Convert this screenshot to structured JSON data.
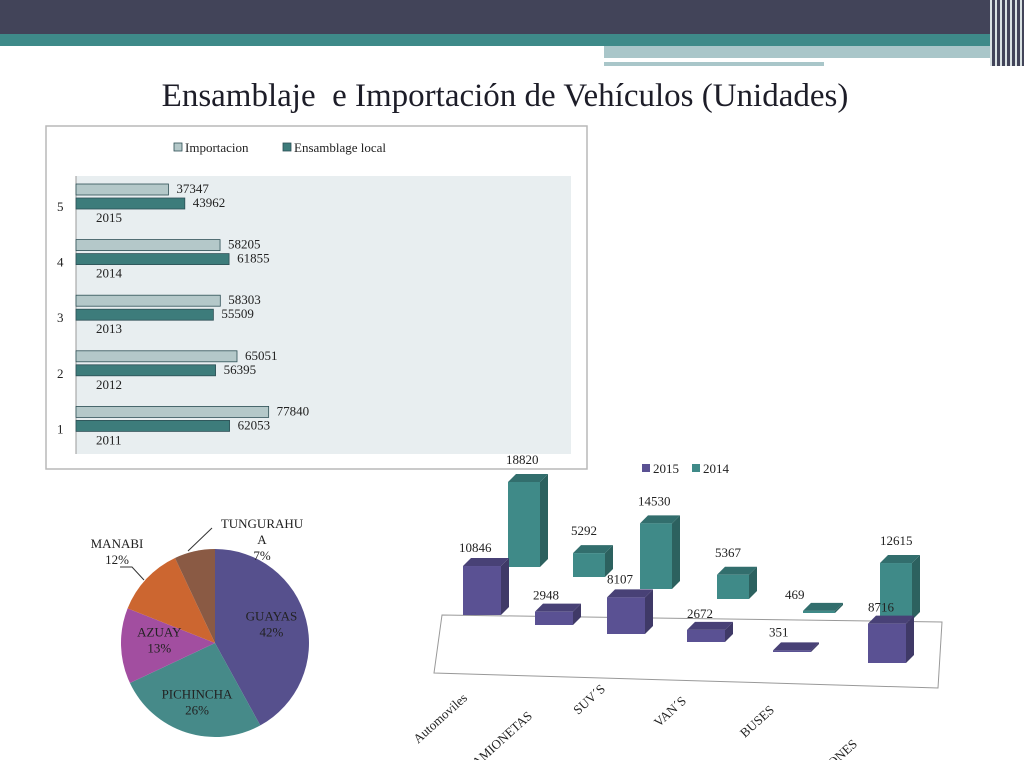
{
  "slide": {
    "title": "Ensamblaje  e Importación de Vehículos (Unidades)"
  },
  "colors": {
    "header_dark": "#424459",
    "header_teal": "#3e8a89",
    "header_light": "#a9c6c9",
    "importacion": "#b4c8c9",
    "ensamblaje": "#3d7c7b",
    "bar_edge": "#2d4f55",
    "plot_bg": "#e8eef0",
    "pie_guayas": "#56508d",
    "pie_pichincha": "#468a89",
    "pie_azuay": "#a24ea0",
    "pie_manabi": "#cc6630",
    "pie_tungurahua": "#8a5a44",
    "bar3d_2015": "#5a5193",
    "bar3d_2014": "#3f8a88"
  },
  "chart_data": [
    {
      "type": "bar",
      "orientation": "horizontal",
      "categories": [
        "1",
        "2",
        "3",
        "4",
        "5"
      ],
      "category_year_labels": [
        "2011",
        "2012",
        "2013",
        "2014",
        "2015"
      ],
      "series": [
        {
          "name": "Importacion",
          "values": [
            77840,
            65051,
            58303,
            58205,
            37347
          ]
        },
        {
          "name": "Ensamblage local",
          "values": [
            62053,
            56395,
            55509,
            61855,
            43962
          ]
        }
      ],
      "value_labels": {
        "Importacion": [
          "77840",
          "65051",
          "58303",
          "58205",
          "37347"
        ],
        "Ensamblage local": [
          "62053",
          "56395",
          "55509",
          "61855",
          "43962"
        ]
      },
      "xlim": [
        0,
        200000
      ],
      "legend": "top",
      "grid": false
    },
    {
      "type": "pie",
      "labels": [
        "GUAYAS",
        "PICHINCHA",
        "AZUAY",
        "MANABI",
        "TUNGURAHUA"
      ],
      "label_lines": [
        [
          "GUAYAS",
          "42%"
        ],
        [
          "PICHINCHA",
          "26%"
        ],
        [
          "AZUAY",
          "13%"
        ],
        [
          "MANABI",
          "12%"
        ],
        [
          "TUNGURAHU",
          "A",
          "7%"
        ]
      ],
      "values": [
        42,
        26,
        13,
        12,
        7
      ],
      "legend": "none"
    },
    {
      "type": "bar",
      "style": "3d",
      "categories": [
        "Automoviles",
        "CAMIONETAS",
        "SUV´S",
        "VAN´S",
        "BUSES",
        "CAMIONES"
      ],
      "series": [
        {
          "name": "2015",
          "values": [
            10846,
            2948,
            8107,
            2672,
            351,
            8716
          ]
        },
        {
          "name": "2014",
          "values": [
            18820,
            5292,
            14530,
            5367,
            469,
            12615
          ]
        }
      ],
      "value_labels": {
        "2015": [
          "10846",
          "2948",
          "8107",
          "2672",
          "351",
          "8716"
        ],
        "2014": [
          "18820",
          "5292",
          "14530",
          "5367",
          "469",
          "12615"
        ]
      },
      "ylim": [
        0,
        20000
      ],
      "legend": "top",
      "grid": false
    }
  ]
}
